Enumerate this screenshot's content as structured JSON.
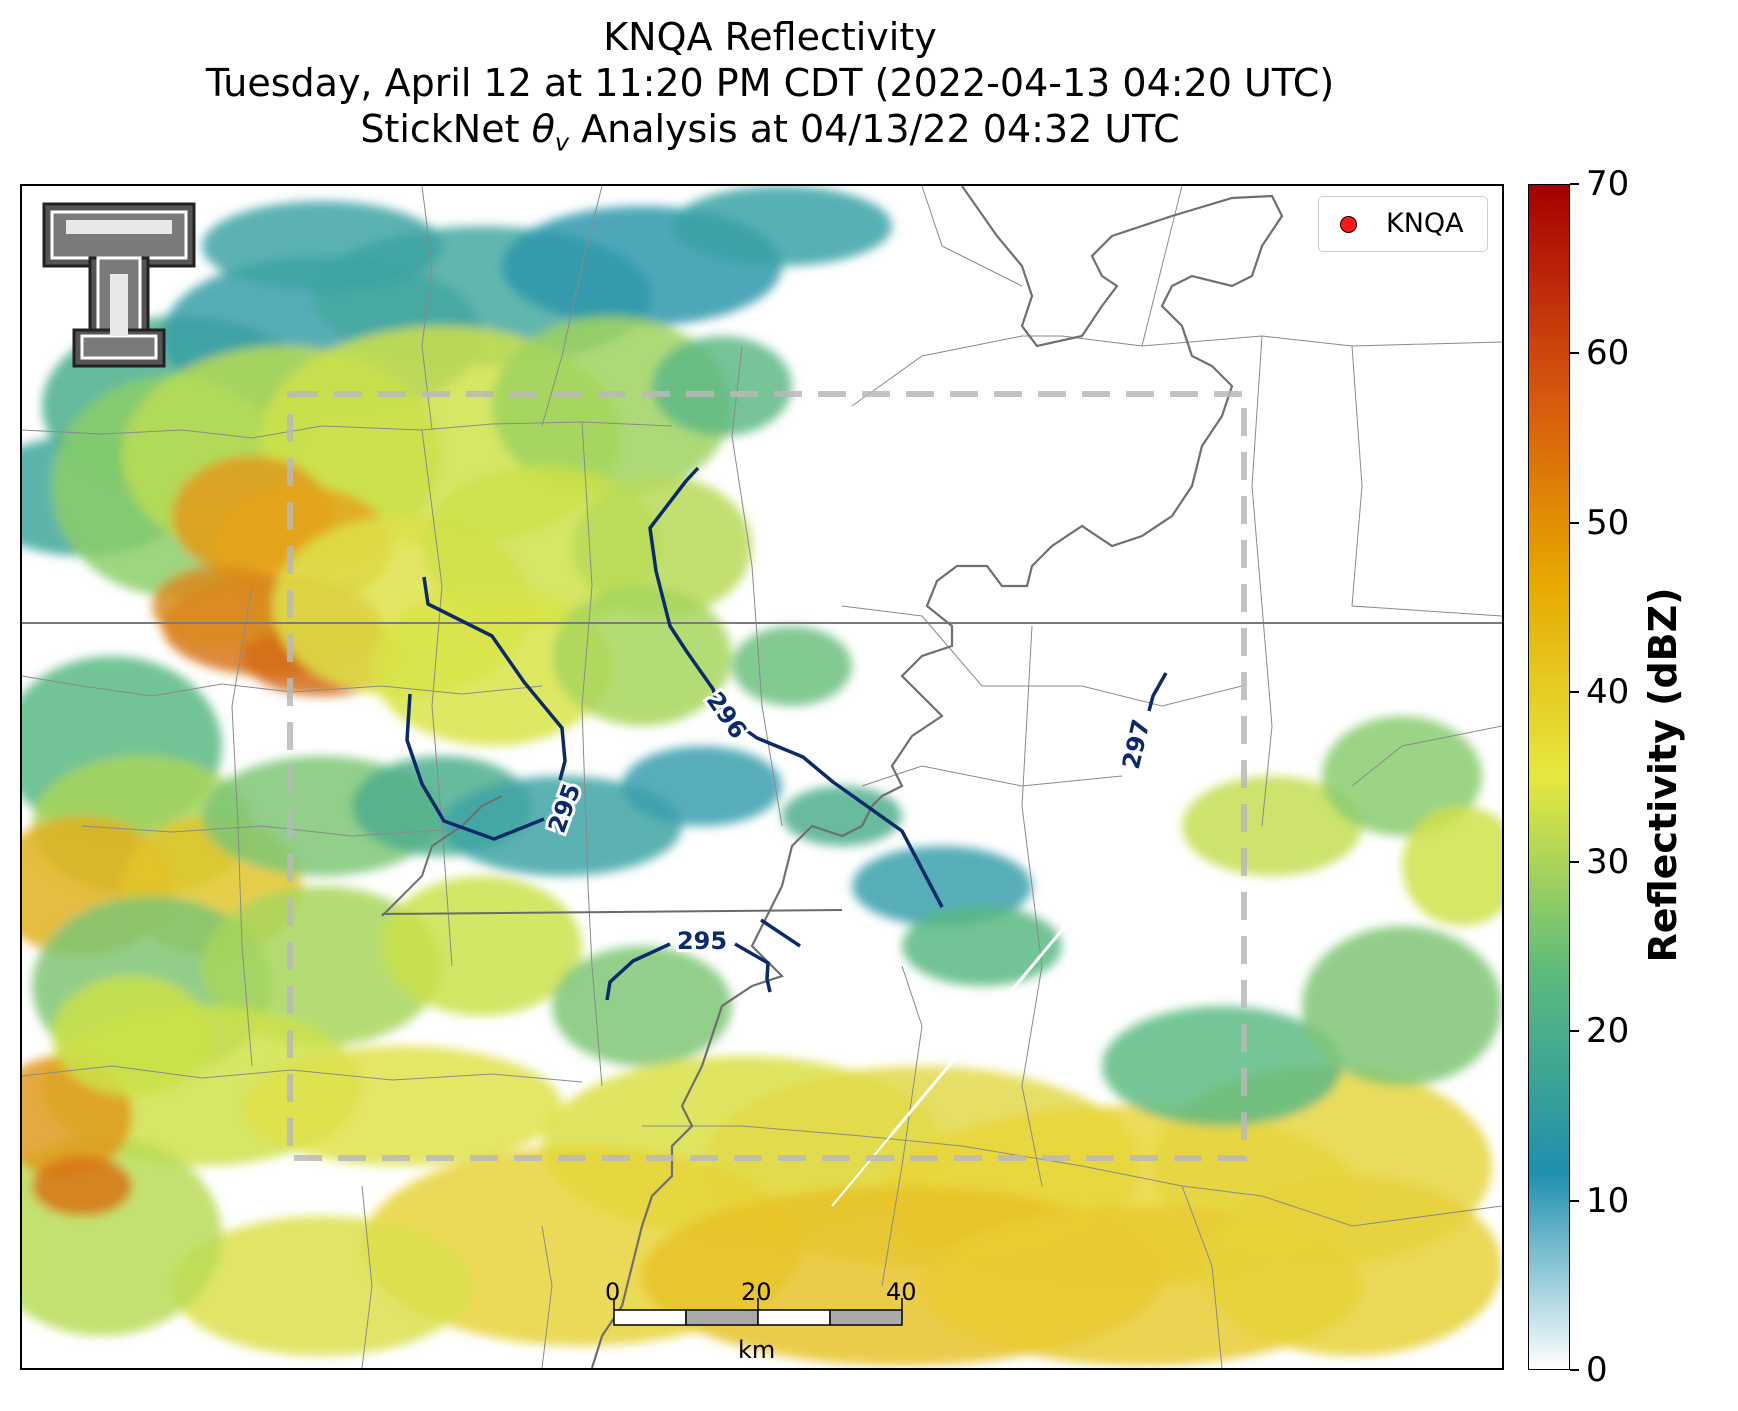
{
  "title": {
    "line1": "KNQA Reflectivity",
    "line2": "Tuesday, April 12 at 11:20 PM CDT (2022-04-13 04:20 UTC)",
    "line3_prefix": "StickNet ",
    "line3_symbol": "θ",
    "line3_sub": "v",
    "line3_suffix": " Analysis at 04/13/22 04:32 UTC"
  },
  "legend": {
    "marker_color": "#ff1a1a",
    "label": "KNQA"
  },
  "colorbar": {
    "title": "Reflectivity (dBZ)",
    "range": [
      0,
      70
    ],
    "ticks": [
      "0",
      "10",
      "20",
      "30",
      "40",
      "50",
      "60",
      "70"
    ],
    "stops": [
      "#ffffff",
      "#1f8fae",
      "#5cba7d",
      "#e6e83f",
      "#e6a800",
      "#d4520f",
      "#a50000"
    ]
  },
  "contours": {
    "color": "#0b2a6b",
    "labels": [
      "295",
      "296",
      "295",
      "297"
    ]
  },
  "scale_bar": {
    "ticks": [
      "0",
      "20",
      "40"
    ],
    "unit": "km"
  },
  "logo": {
    "name": "Texas Tech double-T logo"
  }
}
